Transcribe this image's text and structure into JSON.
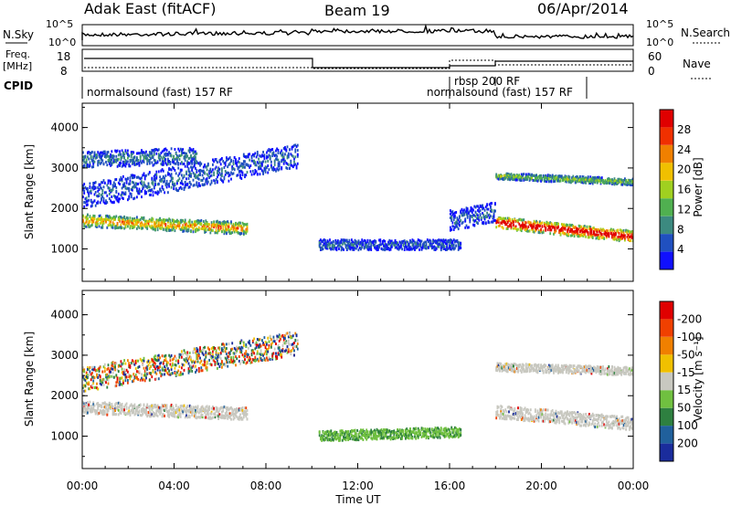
{
  "header": {
    "station": "Adak East (fitACF)",
    "beam": "Beam 19",
    "date": "06/Apr/2014"
  },
  "top_panels": {
    "nsky_label": "N.Sky",
    "nsky_ticks": [
      "10^5",
      "10^0"
    ],
    "nsearch_label": "N.Search",
    "nsearch_ticks": [
      "10^5",
      "10^0"
    ],
    "freq_label_1": "Freq.",
    "freq_label_2": "[MHz]",
    "freq_ticks": [
      "18",
      "8"
    ],
    "nave_label": "Nave",
    "nave_ticks": [
      "60",
      "0"
    ],
    "cpid_label": "CPID",
    "cpid_segments": [
      {
        "label": "normalsound (fast) 157 RF"
      },
      {
        "label": "rbsp 200 RF"
      },
      {
        "label": "normalsound (fast) 157 RF"
      }
    ]
  },
  "chart_data": [
    {
      "type": "heatmap",
      "name": "power",
      "xlabel": "",
      "ylabel": "Slant Range [km]",
      "yticks": [
        "1000",
        "2000",
        "3000",
        "4000"
      ],
      "ylim": [
        200,
        4600
      ],
      "colorbar_label": "Power [dB]",
      "colorbar_ticks": [
        "4",
        "8",
        "12",
        "16",
        "20",
        "24",
        "28"
      ],
      "colorbar_colors": [
        "#1010ff",
        "#2050c0",
        "#3c8a80",
        "#50b050",
        "#a0d020",
        "#f0c000",
        "#f08000",
        "#f03000",
        "#e00000"
      ],
      "bands": [
        {
          "x_start": 0.0,
          "x_end": 7.2,
          "range_start": 1700,
          "range_end": 1500,
          "width": 300,
          "intensity": 0.55
        },
        {
          "x_start": 0.0,
          "x_end": 9.4,
          "range_start": 2300,
          "range_end": 3300,
          "width": 600,
          "intensity": 0.15
        },
        {
          "x_start": 0.0,
          "x_end": 5.0,
          "range_start": 3200,
          "range_end": 3300,
          "width": 400,
          "intensity": 0.2
        },
        {
          "x_start": 10.3,
          "x_end": 16.5,
          "range_start": 1100,
          "range_end": 1100,
          "width": 250,
          "intensity": 0.15
        },
        {
          "x_start": 18.0,
          "x_end": 24.0,
          "range_start": 1650,
          "range_end": 1300,
          "width": 280,
          "intensity": 0.85
        },
        {
          "x_start": 18.0,
          "x_end": 24.0,
          "range_start": 2800,
          "range_end": 2650,
          "width": 160,
          "intensity": 0.35
        },
        {
          "x_start": 16.0,
          "x_end": 18.0,
          "range_start": 1700,
          "range_end": 1900,
          "width": 500,
          "intensity": 0.15
        }
      ]
    },
    {
      "type": "heatmap",
      "name": "velocity",
      "xlabel": "Time UT",
      "ylabel": "Slant Range [km]",
      "yticks": [
        "1000",
        "2000",
        "3000",
        "4000"
      ],
      "ylim": [
        200,
        4600
      ],
      "xticks": [
        "00:00",
        "04:00",
        "08:00",
        "12:00",
        "16:00",
        "20:00",
        "00:00"
      ],
      "xlim": [
        0,
        24
      ],
      "colorbar_label": "Velocity [m s⁻¹]",
      "colorbar_ticks": [
        "200",
        "100",
        "50",
        "15",
        "-15",
        "-50",
        "-100",
        "-200"
      ],
      "colorbar_colors": [
        "#1a2c9c",
        "#20609c",
        "#2e8040",
        "#70c040",
        "#c8c8c0",
        "#f0c000",
        "#f08000",
        "#f04000",
        "#e00000"
      ],
      "bands": [
        {
          "x_start": 0.0,
          "x_end": 7.2,
          "range_start": 1700,
          "range_end": 1550,
          "width": 300,
          "kind": "grey"
        },
        {
          "x_start": 0.0,
          "x_end": 9.4,
          "range_start": 2400,
          "range_end": 3300,
          "width": 600,
          "kind": "mixed"
        },
        {
          "x_start": 10.3,
          "x_end": 16.5,
          "range_start": 1000,
          "range_end": 1100,
          "width": 250,
          "kind": "green"
        },
        {
          "x_start": 18.0,
          "x_end": 24.0,
          "range_start": 1600,
          "range_end": 1300,
          "width": 320,
          "kind": "grey"
        },
        {
          "x_start": 18.0,
          "x_end": 24.0,
          "range_start": 2700,
          "range_end": 2600,
          "width": 200,
          "kind": "grey"
        }
      ]
    }
  ]
}
